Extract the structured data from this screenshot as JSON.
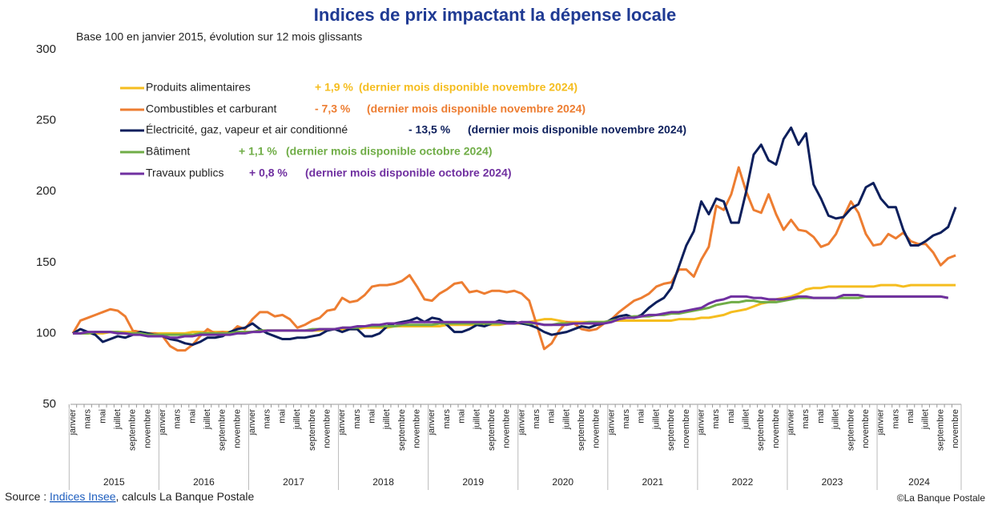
{
  "chart_data": {
    "type": "line",
    "title": "Indices de prix impactant la dépense locale",
    "subtitle": "Base 100 en janvier 2015, évolution sur 12 mois glissants",
    "categories": [
      "janvier",
      null,
      "mars",
      null,
      "mai",
      null,
      "juillet",
      null,
      "septembre",
      null,
      "novembre",
      null,
      "janvier",
      null,
      "mars",
      null,
      "mai",
      null,
      "juillet",
      null,
      "septembre",
      null,
      "novembre",
      null,
      "janvier",
      null,
      "mars",
      null,
      "mai",
      null,
      "juillet",
      null,
      "septembre",
      null,
      "novembre",
      null,
      "janvier",
      null,
      "mars",
      null,
      "mai",
      null,
      "juillet",
      null,
      "septembre",
      null,
      "novembre",
      null,
      "janvier",
      null,
      "mars",
      null,
      "mai",
      null,
      "juillet",
      null,
      "septembre",
      null,
      "novembre",
      null,
      "janvier",
      null,
      "mars",
      null,
      "mai",
      null,
      "juillet",
      null,
      "septembre",
      null,
      "novembre",
      null,
      "janvier",
      null,
      "mars",
      null,
      "mai",
      null,
      "juillet",
      null,
      "septembre",
      null,
      "novembre",
      null,
      "janvier",
      null,
      "mars",
      null,
      "mai",
      null,
      "juillet",
      null,
      "septembre",
      null,
      "novembre",
      null,
      "janvier",
      null,
      "mars",
      null,
      "mai",
      null,
      "juillet",
      null,
      "septembre",
      null,
      "novembre",
      null,
      "janvier",
      null,
      "mars",
      null,
      "mai",
      null,
      "juillet",
      null,
      "septembre",
      null,
      "novembre"
    ],
    "years": [
      "2015",
      "2016",
      "2017",
      "2018",
      "2019",
      "2020",
      "2021",
      "2022",
      "2023",
      "2024"
    ],
    "ylim": [
      50,
      300
    ],
    "yticks": [
      50,
      100,
      150,
      200,
      250,
      300
    ],
    "grid": false,
    "series": [
      {
        "name": "Produits alimentaires",
        "color": "#f5bd1f",
        "change": "+ 1,9 %",
        "note": "(dernier mois disponible novembre 2024)",
        "values": [
          100,
          100,
          100,
          100,
          100,
          101,
          101,
          101,
          101,
          101,
          100,
          100,
          100,
          100,
          100,
          100,
          101,
          101,
          101,
          101,
          101,
          101,
          101,
          101,
          101,
          102,
          102,
          102,
          102,
          102,
          102,
          102,
          102,
          102,
          103,
          103,
          103,
          103,
          103,
          104,
          104,
          104,
          104,
          105,
          105,
          105,
          105,
          105,
          105,
          105,
          106,
          106,
          106,
          106,
          106,
          106,
          106,
          106,
          107,
          107,
          107,
          108,
          109,
          110,
          110,
          109,
          108,
          108,
          108,
          108,
          108,
          108,
          109,
          109,
          109,
          109,
          109,
          109,
          109,
          109,
          109,
          110,
          110,
          110,
          111,
          111,
          112,
          113,
          115,
          116,
          117,
          119,
          121,
          122,
          124,
          125,
          126,
          128,
          131,
          132,
          132,
          133,
          133,
          133,
          133,
          133,
          133,
          133,
          134,
          134,
          134,
          133,
          134,
          134,
          134,
          134,
          134,
          134,
          134
        ]
      },
      {
        "name": "Combustibles et carburant",
        "color": "#ed7d31",
        "change": "- 7,3 %",
        "note": "(dernier mois disponible novembre 2024)",
        "values": [
          100,
          109,
          111,
          113,
          115,
          117,
          116,
          112,
          102,
          101,
          100,
          100,
          98,
          91,
          88,
          88,
          92,
          98,
          103,
          100,
          101,
          100,
          105,
          103,
          110,
          115,
          115,
          112,
          113,
          110,
          104,
          106,
          109,
          111,
          116,
          117,
          125,
          122,
          123,
          127,
          133,
          134,
          134,
          135,
          137,
          141,
          133,
          124,
          123,
          128,
          131,
          135,
          136,
          129,
          130,
          128,
          130,
          130,
          129,
          130,
          128,
          123,
          106,
          89,
          93,
          102,
          108,
          107,
          103,
          102,
          103,
          107,
          110,
          115,
          119,
          123,
          125,
          128,
          133,
          135,
          136,
          145,
          145,
          140,
          152,
          161,
          190,
          187,
          198,
          217,
          200,
          187,
          185,
          198,
          184,
          173,
          180,
          173,
          172,
          168,
          161,
          163,
          170,
          182,
          193,
          185,
          170,
          162,
          163,
          170,
          167,
          171,
          165,
          163,
          163,
          157,
          148,
          153,
          155
        ]
      },
      {
        "name": "Électricité, gaz, vapeur et air conditionné",
        "color": "#0d1f5c",
        "change": "- 13,5 %",
        "note": "(dernier mois disponible novembre 2024)",
        "values": [
          100,
          103,
          101,
          99,
          94,
          96,
          98,
          97,
          99,
          101,
          100,
          99,
          98,
          96,
          95,
          93,
          92,
          94,
          97,
          97,
          98,
          101,
          103,
          104,
          107,
          103,
          100,
          98,
          96,
          96,
          97,
          97,
          98,
          99,
          102,
          103,
          101,
          103,
          103,
          98,
          98,
          100,
          105,
          107,
          108,
          109,
          111,
          108,
          111,
          110,
          106,
          101,
          101,
          103,
          106,
          105,
          107,
          109,
          108,
          108,
          107,
          106,
          104,
          101,
          99,
          100,
          101,
          103,
          105,
          104,
          106,
          107,
          110,
          112,
          113,
          111,
          113,
          118,
          122,
          125,
          132,
          147,
          162,
          172,
          193,
          184,
          195,
          193,
          178,
          178,
          200,
          226,
          233,
          222,
          219,
          237,
          245,
          233,
          241,
          205,
          195,
          183,
          181,
          182,
          188,
          191,
          203,
          206,
          195,
          189,
          189,
          173,
          162,
          162,
          165,
          169,
          171,
          175,
          189
        ]
      },
      {
        "name": "Bâtiment",
        "color": "#70ad47",
        "change": "+ 1,1 %",
        "note": "(dernier mois disponible octobre 2024)",
        "values": [
          100,
          100,
          100,
          101,
          101,
          101,
          101,
          100,
          100,
          100,
          99,
          99,
          99,
          99,
          99,
          99,
          99,
          100,
          100,
          100,
          100,
          100,
          101,
          101,
          101,
          102,
          102,
          102,
          102,
          102,
          102,
          102,
          103,
          103,
          103,
          103,
          104,
          104,
          104,
          105,
          105,
          105,
          105,
          105,
          106,
          106,
          106,
          106,
          106,
          107,
          107,
          107,
          107,
          107,
          107,
          107,
          107,
          107,
          107,
          107,
          108,
          107,
          107,
          106,
          106,
          107,
          107,
          107,
          107,
          108,
          108,
          108,
          109,
          110,
          111,
          112,
          112,
          112,
          113,
          113,
          114,
          114,
          115,
          116,
          117,
          118,
          120,
          121,
          122,
          122,
          123,
          123,
          122,
          122,
          122,
          123,
          124,
          125,
          125,
          125,
          125,
          125,
          125,
          125,
          125,
          125,
          126,
          126,
          126,
          126,
          126,
          126,
          126,
          126,
          126,
          126,
          126,
          125,
          null
        ]
      },
      {
        "name": "Travaux publics",
        "color": "#7030a0",
        "change": "+ 0,8 %",
        "note": "(dernier mois disponible octobre 2024)",
        "values": [
          100,
          100,
          101,
          101,
          101,
          101,
          100,
          100,
          99,
          99,
          98,
          98,
          98,
          97,
          97,
          98,
          98,
          99,
          99,
          99,
          99,
          99,
          100,
          100,
          101,
          101,
          102,
          102,
          102,
          102,
          102,
          102,
          102,
          103,
          103,
          103,
          104,
          104,
          105,
          105,
          106,
          106,
          107,
          107,
          107,
          108,
          108,
          108,
          108,
          108,
          108,
          108,
          108,
          108,
          108,
          108,
          108,
          108,
          107,
          107,
          108,
          108,
          107,
          106,
          106,
          106,
          106,
          107,
          107,
          107,
          107,
          107,
          108,
          110,
          111,
          111,
          112,
          113,
          113,
          114,
          115,
          115,
          116,
          117,
          118,
          121,
          123,
          124,
          126,
          126,
          126,
          125,
          125,
          124,
          124,
          124,
          125,
          126,
          126,
          125,
          125,
          125,
          125,
          127,
          127,
          127,
          126,
          126,
          126,
          126,
          126,
          126,
          126,
          126,
          126,
          126,
          126,
          125,
          null
        ]
      }
    ]
  },
  "footer": {
    "source_prefix": "Source : ",
    "source_link": "Indices Insee",
    "source_suffix": ", calculs La Banque Postale",
    "credit": "©La Banque Postale"
  }
}
